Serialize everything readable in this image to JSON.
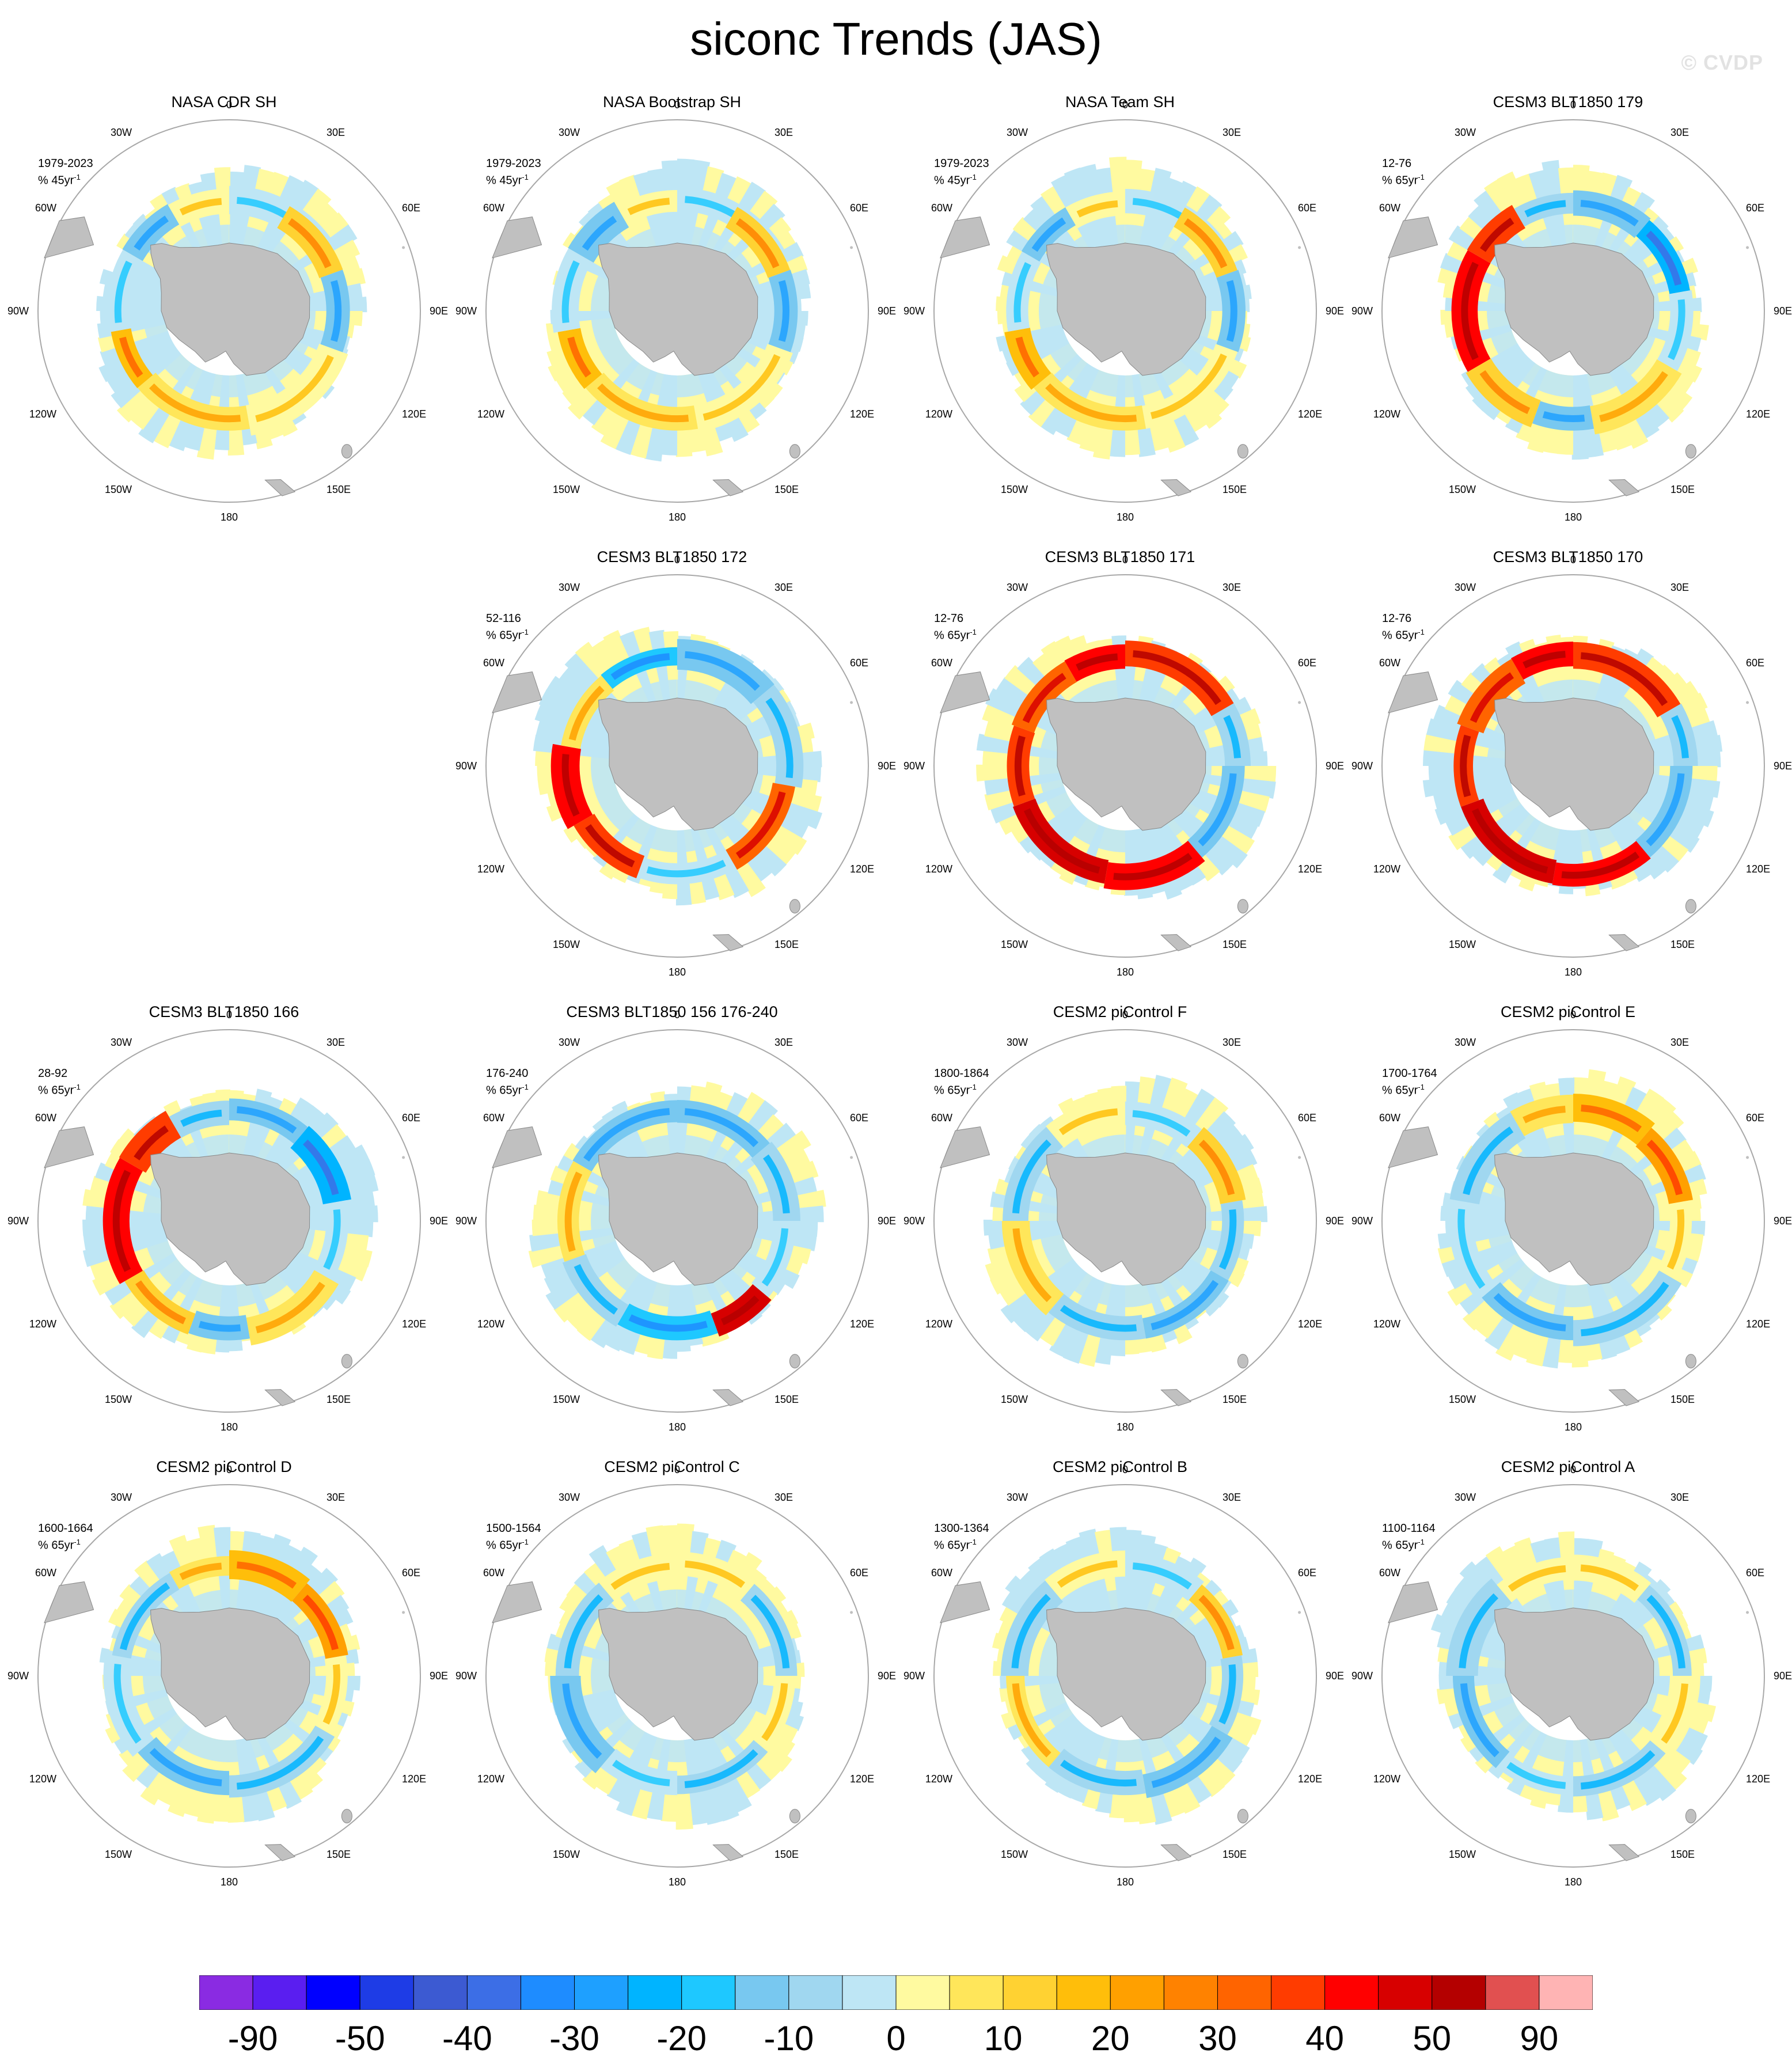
{
  "title": "siconc Trends (JAS)",
  "watermark": "© CVDP",
  "units_label": "% ",
  "colors": {
    "land": "#c0c0c0",
    "ring": "#a8a8a8",
    "palette": [
      "#8a2be2",
      "#5a1ef0",
      "#0000ff",
      "#1e3ce6",
      "#3c5ad2",
      "#3c6ee6",
      "#1e8cff",
      "#1ea0ff",
      "#00b4ff",
      "#1ec8ff",
      "#78c8f0",
      "#a0d7f0",
      "#bee6f5",
      "#fffaa0",
      "#ffe65a",
      "#ffd232",
      "#ffbe0a",
      "#ffa000",
      "#ff8200",
      "#ff6400",
      "#ff3c00",
      "#ff0000",
      "#d70000",
      "#b40000",
      "#e15050",
      "#ffb4b4"
    ]
  },
  "colorbar": {
    "labels": [
      "-90",
      "-50",
      "-40",
      "-30",
      "-20",
      "-10",
      "0",
      "10",
      "20",
      "30",
      "40",
      "50",
      "90"
    ]
  },
  "lon_labels": [
    {
      "text": "0",
      "deg": 0
    },
    {
      "text": "30E",
      "deg": 30
    },
    {
      "text": "60E",
      "deg": 60
    },
    {
      "text": "90E",
      "deg": 90
    },
    {
      "text": "120E",
      "deg": 120
    },
    {
      "text": "150E",
      "deg": 150
    },
    {
      "text": "180",
      "deg": 180
    },
    {
      "text": "150W",
      "deg": 210
    },
    {
      "text": "120W",
      "deg": 240
    },
    {
      "text": "90W",
      "deg": 270
    },
    {
      "text": "60W",
      "deg": 300
    },
    {
      "text": "30W",
      "deg": 330
    }
  ],
  "panels": [
    {
      "title": "NASA CDR SH",
      "period": "1979-2023",
      "units": "45yr",
      "pattern": 0
    },
    {
      "title": "NASA Bootstrap SH",
      "period": "1979-2023",
      "units": "45yr",
      "pattern": 0
    },
    {
      "title": "NASA Team SH",
      "period": "1979-2023",
      "units": "45yr",
      "pattern": 0
    },
    {
      "title": "CESM3 BLT1850 179",
      "period": "12-76",
      "units": "65yr",
      "pattern": 1
    },
    null,
    {
      "title": "CESM3 BLT1850 172",
      "period": "52-116",
      "units": "65yr",
      "pattern": 2
    },
    {
      "title": "CESM3 BLT1850 171",
      "period": "12-76",
      "units": "65yr",
      "pattern": 3
    },
    {
      "title": "CESM3 BLT1850 170",
      "period": "12-76",
      "units": "65yr",
      "pattern": 3
    },
    {
      "title": "CESM3 BLT1850 166",
      "period": "28-92",
      "units": "65yr",
      "pattern": 1
    },
    {
      "title": "CESM3 BLT1850 156 176-240",
      "period": "176-240",
      "units": "65yr",
      "pattern": 4
    },
    {
      "title": "CESM2 piControl F",
      "period": "1800-1864",
      "units": "65yr",
      "pattern": 5
    },
    {
      "title": "CESM2 piControl E",
      "period": "1700-1764",
      "units": "65yr",
      "pattern": 6
    },
    {
      "title": "CESM2 piControl D",
      "period": "1600-1664",
      "units": "65yr",
      "pattern": 6
    },
    {
      "title": "CESM2 piControl C",
      "period": "1500-1564",
      "units": "65yr",
      "pattern": 7
    },
    {
      "title": "CESM2 piControl B",
      "period": "1300-1364",
      "units": "65yr",
      "pattern": 5
    },
    {
      "title": "CESM2 piControl A",
      "period": "1100-1164",
      "units": "65yr",
      "pattern": 7
    }
  ]
}
